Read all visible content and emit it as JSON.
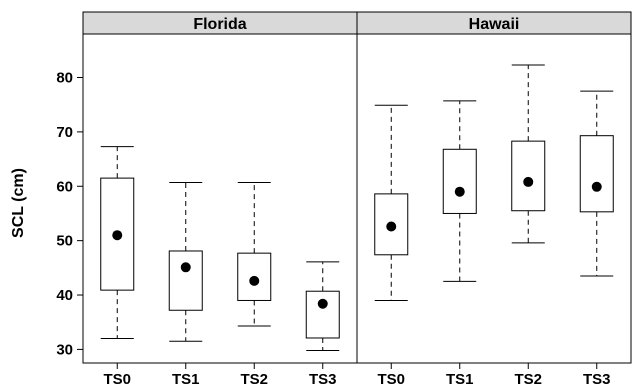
{
  "chart_data": {
    "type": "boxplot",
    "ylabel": "SCL (cm)",
    "ylim": [
      27.5,
      88
    ],
    "yticks": [
      30,
      40,
      50,
      60,
      70,
      80
    ],
    "categories": [
      "TS0",
      "TS1",
      "TS2",
      "TS3"
    ],
    "panels": [
      {
        "name": "Florida",
        "boxes": [
          {
            "category": "TS0",
            "min": 32.0,
            "q1": 40.9,
            "mean": 51.0,
            "q3": 61.5,
            "max": 67.3
          },
          {
            "category": "TS1",
            "min": 31.5,
            "q1": 37.2,
            "mean": 45.1,
            "q3": 48.1,
            "max": 60.7
          },
          {
            "category": "TS2",
            "min": 34.3,
            "q1": 39.0,
            "mean": 42.6,
            "q3": 47.7,
            "max": 60.7
          },
          {
            "category": "TS3",
            "min": 29.8,
            "q1": 32.1,
            "mean": 38.4,
            "q3": 40.7,
            "max": 46.1
          }
        ]
      },
      {
        "name": "Hawaii",
        "boxes": [
          {
            "category": "TS0",
            "min": 39.0,
            "q1": 47.4,
            "mean": 52.6,
            "q3": 58.6,
            "max": 74.9
          },
          {
            "category": "TS1",
            "min": 42.5,
            "q1": 55.0,
            "mean": 59.0,
            "q3": 66.8,
            "max": 75.7
          },
          {
            "category": "TS2",
            "min": 49.6,
            "q1": 55.5,
            "mean": 60.8,
            "q3": 68.3,
            "max": 82.3
          },
          {
            "category": "TS3",
            "min": 43.5,
            "q1": 55.3,
            "mean": 59.9,
            "q3": 69.3,
            "max": 77.5
          }
        ]
      }
    ],
    "colors": {
      "strip_fill": "#d9d9d9",
      "box_fill": "#ffffff",
      "stroke": "#000000",
      "mean_dot": "#000000"
    }
  }
}
